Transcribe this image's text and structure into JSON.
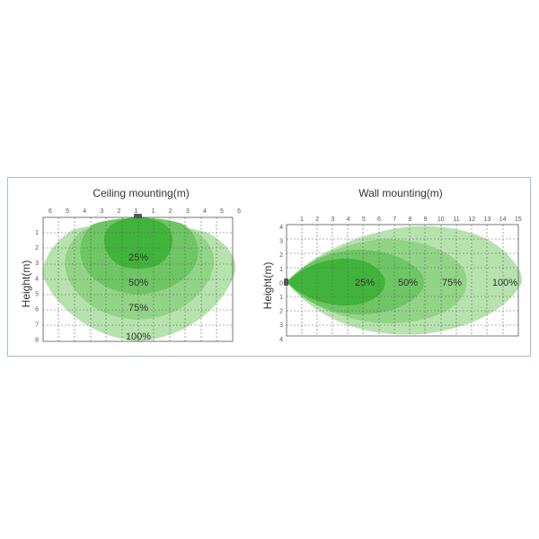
{
  "colors": {
    "frame": "#9fbfd9",
    "zone_100": "#b6e2ad",
    "zone_75": "#92d486",
    "zone_50": "#6dc563",
    "zone_25": "#3fb33a",
    "sensor": "#555555"
  },
  "ceiling": {
    "title": "Ceiling mounting(m)",
    "ylabel": "Height(m)",
    "top_ticks": [
      "6",
      "5",
      "4",
      "3",
      "2",
      "1",
      "1",
      "2",
      "3",
      "4",
      "5",
      "6"
    ],
    "left_ticks": [
      "1",
      "2",
      "3",
      "4",
      "5",
      "6",
      "7",
      "8"
    ],
    "zones": [
      {
        "label": "25%",
        "level": 0.25
      },
      {
        "label": "50%",
        "level": 0.5
      },
      {
        "label": "75%",
        "level": 0.75
      },
      {
        "label": "100%",
        "level": 1.0
      }
    ]
  },
  "wall": {
    "title": "Wall mounting(m)",
    "ylabel": "Height(m)",
    "top_ticks": [
      "1",
      "2",
      "3",
      "4",
      "5",
      "6",
      "7",
      "8",
      "9",
      "10",
      "11",
      "12",
      "13",
      "14",
      "15"
    ],
    "left_ticks": [
      "4",
      "3",
      "2",
      "1",
      "0",
      "1",
      "2",
      "3",
      "4"
    ],
    "zones": [
      {
        "label": "25%",
        "level": 0.25
      },
      {
        "label": "50%",
        "level": 0.5
      },
      {
        "label": "75%",
        "level": 0.75
      },
      {
        "label": "100%",
        "level": 1.0
      }
    ]
  }
}
